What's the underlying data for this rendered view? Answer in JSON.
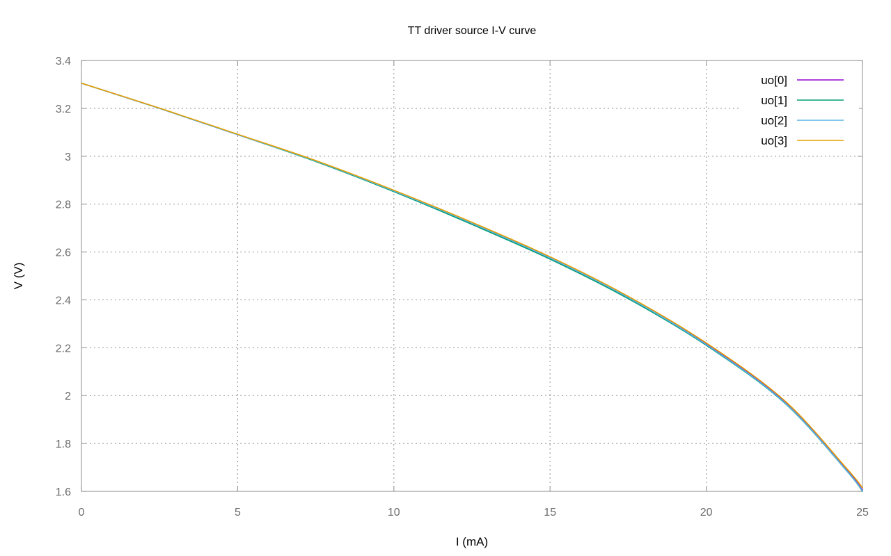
{
  "chart_data": {
    "type": "line",
    "title": "TT driver source I-V curve",
    "xlabel": "I (mA)",
    "ylabel": "V (V)",
    "xlim": [
      0,
      25
    ],
    "ylim": [
      1.6,
      3.4
    ],
    "x_ticks": [
      "0",
      "5",
      "10",
      "15",
      "20",
      "25"
    ],
    "y_ticks": [
      "1.6",
      "1.8",
      "2",
      "2.2",
      "2.4",
      "2.6",
      "2.8",
      "3",
      "3.2",
      "3.4"
    ],
    "grid": true,
    "legend_position": "top-right",
    "x": [
      0,
      2.5,
      5,
      7.5,
      10,
      12.5,
      15,
      17.5,
      20,
      22.5,
      24.5,
      25
    ],
    "series": [
      {
        "name": "uo[0]",
        "color": "#9400d3",
        "values": [
          3.305,
          3.2,
          3.09,
          2.98,
          2.855,
          2.72,
          2.575,
          2.41,
          2.215,
          1.975,
          1.69,
          1.605
        ]
      },
      {
        "name": "uo[1]",
        "color": "#009e73",
        "values": [
          3.305,
          3.2,
          3.09,
          2.978,
          2.852,
          2.715,
          2.57,
          2.405,
          2.21,
          1.97,
          1.685,
          1.6
        ]
      },
      {
        "name": "uo[2]",
        "color": "#56b4e9",
        "values": [
          3.305,
          3.2,
          3.09,
          2.98,
          2.855,
          2.72,
          2.575,
          2.41,
          2.213,
          1.972,
          1.686,
          1.602
        ]
      },
      {
        "name": "uo[3]",
        "color": "#e69f00",
        "values": [
          3.305,
          3.201,
          3.092,
          2.982,
          2.858,
          2.724,
          2.58,
          2.415,
          2.22,
          1.98,
          1.695,
          1.615
        ]
      }
    ]
  }
}
